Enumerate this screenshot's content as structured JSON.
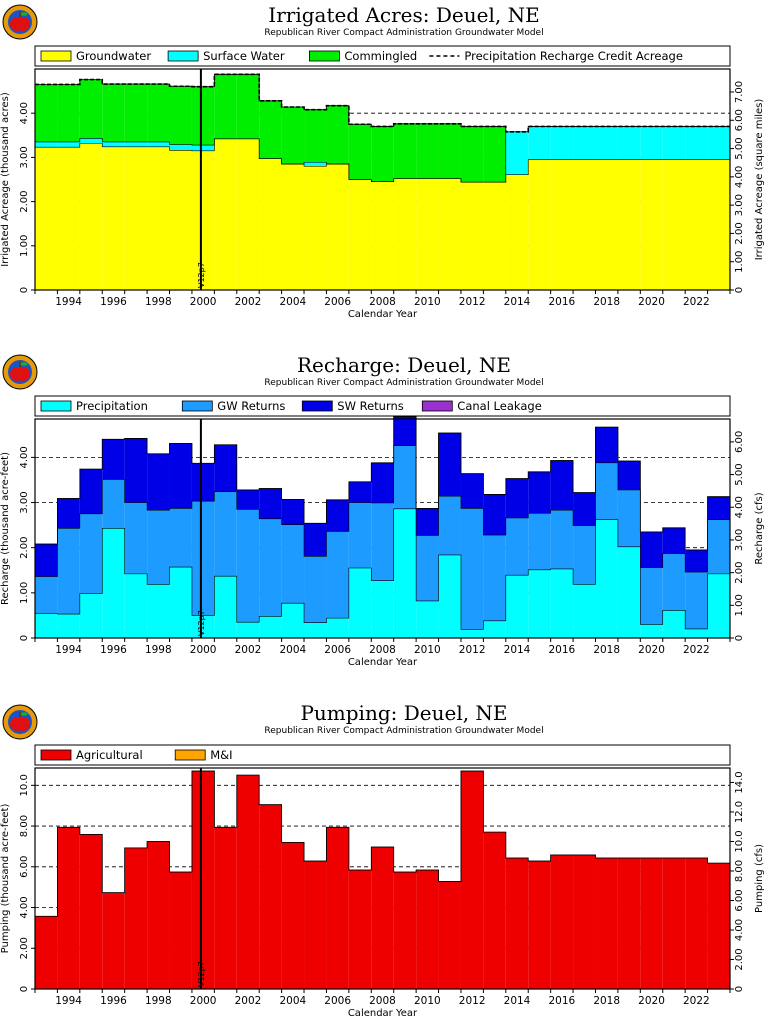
{
  "colors": {
    "groundwater": "#ffff00",
    "surface_water": "#00ffff",
    "commingled": "#00ee00",
    "precipitation": "#00ffff",
    "gw_returns": "#1e9bff",
    "sw_returns": "#0000e6",
    "canal_leakage": "#9b30d0",
    "agricultural": "#ee0000",
    "mi": "#ffa500",
    "logo_outer": "#e69a0a",
    "logo_inner": "#1a55c8",
    "apple": "#e01010"
  },
  "icons": [
    "apple-logo-icon"
  ],
  "chart_data": [
    {
      "type": "area",
      "title": "Irrigated Acres: Deuel, NE",
      "subtitle": "Republican River Compact Administration Groundwater Model",
      "xlabel": "Calendar Year",
      "ylabel": "Irrigated Acreage (thousand acres)",
      "y2label": "Irrigated Acreage (square miles)",
      "xlim": [
        1993,
        2024
      ],
      "ylim": [
        0,
        5
      ],
      "y2lim": [
        0,
        7.8125
      ],
      "yticks": [
        0,
        1,
        2,
        3,
        4
      ],
      "ytick_labels": [
        "0",
        "1.00",
        "2.00",
        "3.00",
        "4.00"
      ],
      "y2ticks": [
        0,
        1,
        2,
        3,
        4,
        5,
        6,
        7
      ],
      "y2tick_labels": [
        "0",
        "1.00",
        "2.00",
        "3.00",
        "4.00",
        "5.00",
        "6.00",
        "7.00"
      ],
      "xticks": [
        1994,
        1996,
        1998,
        2000,
        2002,
        2004,
        2006,
        2008,
        2010,
        2012,
        2014,
        2016,
        2018,
        2020,
        2022
      ],
      "xtick_labels": [
        "1994",
        "1996",
        "1998",
        "2000",
        "2002",
        "2004",
        "2006",
        "2008",
        "2010",
        "2012",
        "2014",
        "2016",
        "2018",
        "2020",
        "2022"
      ],
      "grid": true,
      "legend_position": "top",
      "vline": {
        "x": 2000.4,
        "label": "V12p7"
      },
      "years": [
        1993,
        1994,
        1995,
        1996,
        1997,
        1998,
        1999,
        2000,
        2001,
        2002,
        2003,
        2004,
        2005,
        2006,
        2007,
        2008,
        2009,
        2010,
        2011,
        2012,
        2013,
        2014,
        2015,
        2016,
        2017,
        2018,
        2019,
        2020,
        2021,
        2022,
        2023
      ],
      "series": [
        {
          "name": "Groundwater",
          "color_key": "groundwater",
          "values": [
            3.23,
            3.23,
            3.32,
            3.24,
            3.24,
            3.24,
            3.16,
            3.15,
            3.42,
            3.42,
            2.97,
            2.85,
            2.8,
            2.85,
            2.5,
            2.45,
            2.52,
            2.52,
            2.52,
            2.44,
            2.44,
            2.61,
            2.95,
            2.95,
            2.95,
            2.95,
            2.95,
            2.95,
            2.95,
            2.95,
            2.95
          ]
        },
        {
          "name": "Surface Water",
          "color_key": "surface_water",
          "values": [
            0.12,
            0.12,
            0.11,
            0.11,
            0.11,
            0.11,
            0.13,
            0.13,
            0,
            0,
            0,
            0,
            0.09,
            0,
            0,
            0,
            0,
            0,
            0,
            0,
            0,
            0.97,
            0.75,
            0.75,
            0.75,
            0.75,
            0.75,
            0.75,
            0.75,
            0.75,
            0.75
          ]
        },
        {
          "name": "Commingled",
          "color_key": "commingled",
          "values": [
            1.3,
            1.3,
            1.33,
            1.31,
            1.31,
            1.31,
            1.32,
            1.32,
            1.46,
            1.46,
            1.31,
            1.29,
            1.19,
            1.32,
            1.25,
            1.25,
            1.24,
            1.24,
            1.24,
            1.26,
            1.26,
            0,
            0,
            0,
            0,
            0,
            0,
            0,
            0,
            0,
            0
          ]
        }
      ],
      "line_series": {
        "name": "Precipitation Recharge Credit Acreage",
        "style": "dashed",
        "values": [
          4.65,
          4.65,
          4.76,
          4.66,
          4.66,
          4.66,
          4.61,
          4.6,
          4.88,
          4.88,
          4.28,
          4.14,
          4.08,
          4.17,
          3.75,
          3.7,
          3.76,
          3.76,
          3.76,
          3.7,
          3.7,
          3.58,
          3.7,
          3.7,
          3.7,
          3.7,
          3.7,
          3.7,
          3.7,
          3.7,
          3.7
        ]
      }
    },
    {
      "type": "area",
      "title": "Recharge: Deuel, NE",
      "subtitle": "Republican River Compact Administration Groundwater Model",
      "xlabel": "Calendar Year",
      "ylabel": "Recharge (thousand acre-feet)",
      "y2label": "Recharge (cfs)",
      "xlim": [
        1993,
        2024
      ],
      "ylim": [
        0,
        4.85
      ],
      "y2lim": [
        0,
        6.7
      ],
      "yticks": [
        0,
        1,
        2,
        3,
        4
      ],
      "ytick_labels": [
        "0",
        "1.00",
        "2.00",
        "3.00",
        "4.00"
      ],
      "y2ticks": [
        0,
        1,
        2,
        3,
        4,
        5,
        6
      ],
      "y2tick_labels": [
        "0",
        "1.00",
        "2.00",
        "3.00",
        "4.00",
        "5.00",
        "6.00"
      ],
      "xticks": [
        1994,
        1996,
        1998,
        2000,
        2002,
        2004,
        2006,
        2008,
        2010,
        2012,
        2014,
        2016,
        2018,
        2020,
        2022
      ],
      "xtick_labels": [
        "1994",
        "1996",
        "1998",
        "2000",
        "2002",
        "2004",
        "2006",
        "2008",
        "2010",
        "2012",
        "2014",
        "2016",
        "2018",
        "2020",
        "2022"
      ],
      "grid": true,
      "legend_position": "top",
      "vline": {
        "x": 2000.4,
        "label": "V12p7"
      },
      "years": [
        1993,
        1994,
        1995,
        1996,
        1997,
        1998,
        1999,
        2000,
        2001,
        2002,
        2003,
        2004,
        2005,
        2006,
        2007,
        2008,
        2009,
        2010,
        2011,
        2012,
        2013,
        2014,
        2015,
        2016,
        2017,
        2018,
        2019,
        2020,
        2021,
        2022,
        2023
      ],
      "series": [
        {
          "name": "Precipitation",
          "color_key": "precipitation",
          "values": [
            0.54,
            0.53,
            0.98,
            2.43,
            1.42,
            1.19,
            1.57,
            0.5,
            1.37,
            0.35,
            0.48,
            0.77,
            0.34,
            0.44,
            1.55,
            1.27,
            2.86,
            0.82,
            1.84,
            0.19,
            0.38,
            1.39,
            1.51,
            1.53,
            1.19,
            2.62,
            2.02,
            0.3,
            0.61,
            0.2,
            1.42
          ]
        },
        {
          "name": "GW Returns",
          "color_key": "gw_returns",
          "values": [
            0.82,
            1.9,
            1.77,
            1.08,
            1.58,
            1.64,
            1.3,
            2.53,
            1.87,
            2.5,
            2.16,
            1.74,
            1.47,
            1.92,
            1.45,
            1.72,
            1.4,
            1.45,
            1.3,
            2.68,
            1.9,
            1.27,
            1.25,
            1.3,
            1.3,
            1.26,
            1.26,
            1.26,
            1.26,
            1.26,
            1.2
          ]
        },
        {
          "name": "SW Returns",
          "color_key": "sw_returns",
          "values": [
            0.72,
            0.66,
            0.99,
            0.89,
            1.42,
            1.25,
            1.44,
            0.84,
            1.04,
            0.43,
            0.67,
            0.56,
            0.73,
            0.7,
            0.46,
            0.89,
            0.64,
            0.6,
            1.4,
            0.77,
            0.9,
            0.87,
            0.92,
            1.1,
            0.73,
            0.79,
            0.64,
            0.79,
            0.57,
            0.49,
            0.51
          ]
        },
        {
          "name": "Canal Leakage",
          "color_key": "canal_leakage",
          "values": [
            0,
            0,
            0,
            0,
            0,
            0,
            0,
            0,
            0,
            0,
            0,
            0,
            0,
            0,
            0,
            0,
            0,
            0,
            0,
            0,
            0,
            0,
            0,
            0,
            0,
            0,
            0,
            0,
            0,
            0,
            0
          ]
        }
      ]
    },
    {
      "type": "area",
      "title": "Pumping: Deuel, NE",
      "subtitle": "Republican River Compact Administration Groundwater Model",
      "xlabel": "Calendar Year",
      "ylabel": "Pumping (thousand acre-feet)",
      "y2label": "Pumping (cfs)",
      "xlim": [
        1993,
        2024
      ],
      "ylim": [
        0,
        10.85
      ],
      "y2lim": [
        0,
        14.98
      ],
      "yticks": [
        0,
        2,
        4,
        6,
        8,
        10
      ],
      "ytick_labels": [
        "0",
        "2.00",
        "4.00",
        "6.00",
        "8.00",
        "10.0"
      ],
      "y2ticks": [
        0,
        2,
        4,
        6,
        8,
        10,
        12,
        14
      ],
      "y2tick_labels": [
        "0",
        "2.00",
        "4.00",
        "6.00",
        "8.00",
        "10.0",
        "12.0",
        "14.0"
      ],
      "xticks": [
        1994,
        1996,
        1998,
        2000,
        2002,
        2004,
        2006,
        2008,
        2010,
        2012,
        2014,
        2016,
        2018,
        2020,
        2022
      ],
      "xtick_labels": [
        "1994",
        "1996",
        "1998",
        "2000",
        "2002",
        "2004",
        "2006",
        "2008",
        "2010",
        "2012",
        "2014",
        "2016",
        "2018",
        "2020",
        "2022"
      ],
      "grid": true,
      "legend_position": "top",
      "vline": {
        "x": 2000.4,
        "label": "V12p7"
      },
      "years": [
        1993,
        1994,
        1995,
        1996,
        1997,
        1998,
        1999,
        2000,
        2001,
        2002,
        2003,
        2004,
        2005,
        2006,
        2007,
        2008,
        2009,
        2010,
        2011,
        2012,
        2013,
        2014,
        2015,
        2016,
        2017,
        2018,
        2019,
        2020,
        2021,
        2022,
        2023
      ],
      "series": [
        {
          "name": "Agricultural",
          "color_key": "agricultural",
          "values": [
            3.57,
            7.94,
            7.59,
            4.73,
            6.93,
            7.24,
            5.74,
            10.7,
            7.94,
            10.5,
            9.05,
            7.2,
            6.28,
            7.94,
            5.84,
            6.97,
            5.74,
            5.84,
            5.28,
            10.7,
            7.7,
            6.43,
            6.28,
            6.58,
            6.58,
            6.43,
            6.43,
            6.43,
            6.43,
            6.43,
            6.18
          ]
        },
        {
          "name": "M&I",
          "color_key": "mi",
          "values": [
            0,
            0,
            0,
            0,
            0,
            0,
            0,
            0,
            0,
            0,
            0,
            0,
            0,
            0,
            0,
            0,
            0,
            0,
            0,
            0,
            0,
            0,
            0,
            0,
            0,
            0,
            0,
            0,
            0,
            0,
            0
          ]
        }
      ]
    }
  ]
}
